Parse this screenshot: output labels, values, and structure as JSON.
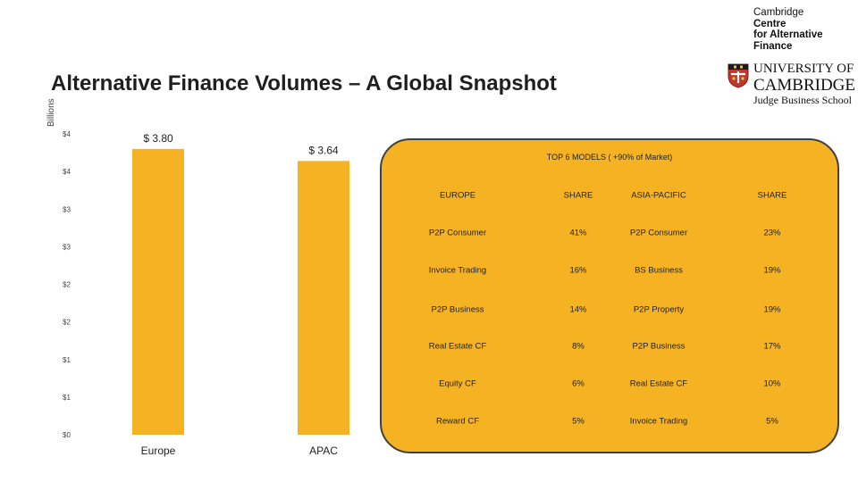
{
  "page": {
    "title": "Alternative Finance Volumes – A Global Snapshot"
  },
  "logo": {
    "cca_lines": [
      "Cambridge",
      "Centre",
      "for Alternative",
      "Finance"
    ],
    "university_line1": "UNIVERSITY OF",
    "university_line2": "CAMBRIDGE",
    "school": "Judge Business School",
    "crest_icon": "cambridge-crest-icon"
  },
  "chart_data": {
    "type": "bar",
    "categories": [
      "Europe",
      "APAC"
    ],
    "values": [
      3.8,
      3.64
    ],
    "data_labels": [
      "$ 3.80",
      "$ 3.64"
    ],
    "unit_label": "Billions",
    "ylim": [
      0,
      4
    ],
    "y_tick_labels": [
      "$4",
      "$4",
      "$3",
      "$3",
      "$2",
      "$2",
      "$1",
      "$1",
      "$0"
    ],
    "bar_color": "#f5b324",
    "grid": false
  },
  "table": {
    "title": "TOP 6 MODELS ( +90% of Market)",
    "headers": [
      "EUROPE",
      "SHARE",
      "ASIA-PACIFIC",
      "SHARE"
    ],
    "rows": [
      [
        "P2P Consumer",
        "41%",
        "P2P Consumer",
        "23%"
      ],
      [
        "Invoice Trading",
        "16%",
        "BS Business",
        "19%"
      ],
      [
        "P2P Business",
        "14%",
        "P2P Property",
        "19%"
      ],
      [
        "Real Estate CF",
        "8%",
        "P2P Business",
        "17%"
      ],
      [
        "Equity CF",
        "6%",
        "Real Estate CF",
        "10%"
      ],
      [
        "Reward CF",
        "5%",
        "Invoice Trading",
        "5%"
      ]
    ],
    "panel_color": "#f5b324"
  }
}
